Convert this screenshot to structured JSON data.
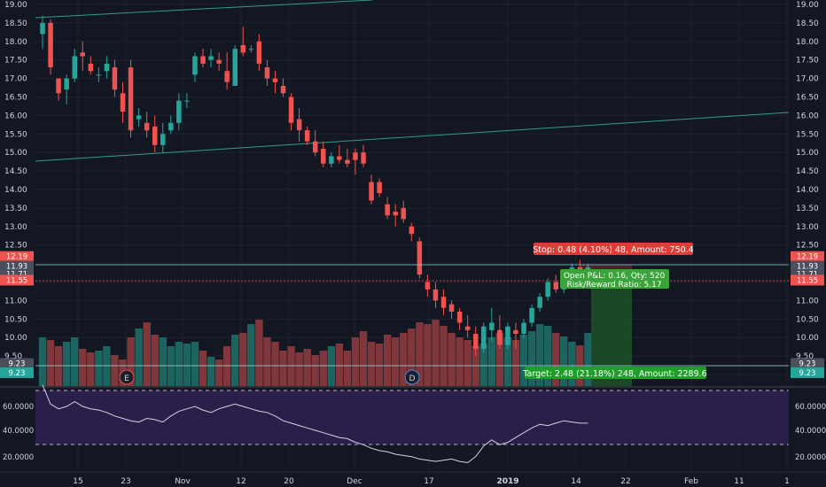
{
  "theme": {
    "background": "#131722",
    "grid": "#1e2230",
    "axis_text": "#d1d4dc",
    "up": "#26a69a",
    "down": "#ef5350",
    "vol_up": "#1f6b66",
    "vol_down": "#8c3b3e",
    "rsi_band": "#2a1f4a",
    "rsi_line": "#d1d4dc"
  },
  "price_axis": {
    "ticks": [
      "19.00",
      "18.50",
      "18.00",
      "17.50",
      "17.00",
      "16.50",
      "16.00",
      "15.50",
      "15.00",
      "14.50",
      "14.00",
      "13.50",
      "13.00",
      "12.50",
      "12.00",
      "11.50",
      "11.00",
      "10.50",
      "10.00",
      "9.50",
      "9.00"
    ]
  },
  "price_tags": [
    {
      "id": "stop",
      "value": 12.19,
      "label": "12.19",
      "color": "#ef5350"
    },
    {
      "id": "last",
      "value": 11.93,
      "label": "11.93",
      "color": "#4a4f5c"
    },
    {
      "id": "entry",
      "value": 11.71,
      "label": "11.71",
      "color": "#4a4f5c"
    },
    {
      "id": "open",
      "value": 11.55,
      "label": "11.55",
      "color": "#ef5350"
    },
    {
      "id": "target_line",
      "value": 9.3,
      "label": "9.23",
      "color": "#4a4f5c"
    },
    {
      "id": "target",
      "value": 9.05,
      "label": "9.23",
      "color": "#26a69a"
    }
  ],
  "rsi_axis": {
    "ticks": [
      "60.0000",
      "40.0000",
      "20.0000"
    ]
  },
  "time_axis": {
    "labels": [
      "15",
      "23",
      "Nov",
      "12",
      "20",
      "Dec",
      "17",
      "2019",
      "14",
      "22",
      "Feb",
      "11",
      "1"
    ]
  },
  "markers": [
    {
      "id": "earnings",
      "text": "E"
    },
    {
      "id": "dividend",
      "text": "D"
    }
  ],
  "position": {
    "stop_label": "Stop: 0.48 (4.10%) 48, Amount: 750.4",
    "pnl_label": "Open P&L: 0.16, Qty: 520",
    "ratio_label": "Risk/Reward Ratio: 5.17",
    "target_label": "Target: 2.48 (21.18%) 248, Amount: 2289.6"
  },
  "chart_data": {
    "type": "candlestick",
    "ylim": [
      9.0,
      19.0
    ],
    "candles": [
      {
        "o": 18.2,
        "h": 18.7,
        "l": 17.8,
        "c": 18.5
      },
      {
        "o": 18.5,
        "h": 18.6,
        "l": 17.1,
        "c": 17.3
      },
      {
        "o": 17.0,
        "h": 17.0,
        "l": 16.4,
        "c": 16.6
      },
      {
        "o": 16.7,
        "h": 17.1,
        "l": 16.3,
        "c": 17.0
      },
      {
        "o": 17.0,
        "h": 17.8,
        "l": 16.9,
        "c": 17.6
      },
      {
        "o": 17.7,
        "h": 18.0,
        "l": 17.2,
        "c": 17.6
      },
      {
        "o": 17.4,
        "h": 17.6,
        "l": 17.1,
        "c": 17.2
      },
      {
        "o": 17.1,
        "h": 17.3,
        "l": 16.9,
        "c": 17.1
      },
      {
        "o": 17.2,
        "h": 17.6,
        "l": 17.0,
        "c": 17.4
      },
      {
        "o": 17.3,
        "h": 17.5,
        "l": 16.5,
        "c": 16.7
      },
      {
        "o": 16.6,
        "h": 16.9,
        "l": 15.8,
        "c": 16.1
      },
      {
        "o": 17.3,
        "h": 17.5,
        "l": 15.4,
        "c": 15.6
      },
      {
        "o": 15.9,
        "h": 16.2,
        "l": 15.7,
        "c": 16.0
      },
      {
        "o": 15.8,
        "h": 16.1,
        "l": 15.4,
        "c": 15.6
      },
      {
        "o": 15.7,
        "h": 16.0,
        "l": 15.0,
        "c": 15.2
      },
      {
        "o": 15.2,
        "h": 15.8,
        "l": 15.0,
        "c": 15.5
      },
      {
        "o": 15.6,
        "h": 16.0,
        "l": 15.5,
        "c": 15.8
      },
      {
        "o": 15.8,
        "h": 16.6,
        "l": 15.6,
        "c": 16.4
      },
      {
        "o": 16.4,
        "h": 16.6,
        "l": 16.2,
        "c": 16.4
      },
      {
        "o": 17.1,
        "h": 17.7,
        "l": 16.9,
        "c": 17.6
      },
      {
        "o": 17.6,
        "h": 17.8,
        "l": 17.3,
        "c": 17.4
      },
      {
        "o": 17.5,
        "h": 17.8,
        "l": 17.3,
        "c": 17.6
      },
      {
        "o": 17.5,
        "h": 17.7,
        "l": 17.2,
        "c": 17.4
      },
      {
        "o": 17.2,
        "h": 17.7,
        "l": 16.7,
        "c": 16.9
      },
      {
        "o": 16.8,
        "h": 17.9,
        "l": 16.8,
        "c": 17.8
      },
      {
        "o": 17.9,
        "h": 18.4,
        "l": 17.6,
        "c": 17.7
      },
      {
        "o": 17.8,
        "h": 17.9,
        "l": 17.7,
        "c": 17.8
      },
      {
        "o": 18.0,
        "h": 18.2,
        "l": 17.2,
        "c": 17.4
      },
      {
        "o": 17.3,
        "h": 17.5,
        "l": 16.8,
        "c": 17.0
      },
      {
        "o": 17.0,
        "h": 17.2,
        "l": 16.6,
        "c": 16.9
      },
      {
        "o": 16.8,
        "h": 17.0,
        "l": 16.5,
        "c": 16.6
      },
      {
        "o": 16.5,
        "h": 16.6,
        "l": 15.6,
        "c": 15.8
      },
      {
        "o": 15.9,
        "h": 16.2,
        "l": 15.3,
        "c": 15.6
      },
      {
        "o": 15.6,
        "h": 15.7,
        "l": 15.2,
        "c": 15.3
      },
      {
        "o": 15.3,
        "h": 15.6,
        "l": 14.9,
        "c": 15.0
      },
      {
        "o": 15.1,
        "h": 15.3,
        "l": 14.6,
        "c": 14.7
      },
      {
        "o": 14.7,
        "h": 15.0,
        "l": 14.6,
        "c": 14.9
      },
      {
        "o": 14.9,
        "h": 15.2,
        "l": 14.7,
        "c": 14.8
      },
      {
        "o": 14.8,
        "h": 15.1,
        "l": 14.6,
        "c": 14.7
      },
      {
        "o": 15.0,
        "h": 15.1,
        "l": 14.4,
        "c": 14.8
      },
      {
        "o": 15.0,
        "h": 15.2,
        "l": 14.6,
        "c": 14.7
      },
      {
        "o": 14.2,
        "h": 14.4,
        "l": 13.6,
        "c": 13.7
      },
      {
        "o": 14.2,
        "h": 14.3,
        "l": 13.8,
        "c": 13.9
      },
      {
        "o": 13.6,
        "h": 13.8,
        "l": 13.2,
        "c": 13.3
      },
      {
        "o": 13.4,
        "h": 13.6,
        "l": 13.0,
        "c": 13.3
      },
      {
        "o": 13.5,
        "h": 13.7,
        "l": 13.1,
        "c": 13.2
      },
      {
        "o": 13.0,
        "h": 13.1,
        "l": 12.6,
        "c": 12.8
      },
      {
        "o": 12.6,
        "h": 12.7,
        "l": 11.6,
        "c": 11.7
      },
      {
        "o": 11.5,
        "h": 11.7,
        "l": 11.1,
        "c": 11.3
      },
      {
        "o": 11.3,
        "h": 11.5,
        "l": 10.8,
        "c": 11.0
      },
      {
        "o": 11.1,
        "h": 11.3,
        "l": 10.6,
        "c": 10.8
      },
      {
        "o": 10.9,
        "h": 11.0,
        "l": 10.5,
        "c": 10.7
      },
      {
        "o": 10.7,
        "h": 10.8,
        "l": 10.2,
        "c": 10.4
      },
      {
        "o": 10.3,
        "h": 10.6,
        "l": 10.0,
        "c": 10.2
      },
      {
        "o": 10.1,
        "h": 10.3,
        "l": 9.5,
        "c": 9.7
      },
      {
        "o": 9.7,
        "h": 10.4,
        "l": 9.6,
        "c": 10.3
      },
      {
        "o": 10.2,
        "h": 10.8,
        "l": 9.9,
        "c": 10.4
      },
      {
        "o": 10.2,
        "h": 10.6,
        "l": 9.7,
        "c": 9.8
      },
      {
        "o": 9.8,
        "h": 10.4,
        "l": 9.7,
        "c": 10.3
      },
      {
        "o": 10.2,
        "h": 10.4,
        "l": 9.7,
        "c": 10.1
      },
      {
        "o": 10.1,
        "h": 10.5,
        "l": 10.0,
        "c": 10.4
      },
      {
        "o": 10.4,
        "h": 10.9,
        "l": 10.3,
        "c": 10.8
      },
      {
        "o": 10.8,
        "h": 11.2,
        "l": 10.7,
        "c": 11.1
      },
      {
        "o": 11.1,
        "h": 11.6,
        "l": 11.0,
        "c": 11.5
      },
      {
        "o": 11.5,
        "h": 11.7,
        "l": 11.2,
        "c": 11.3
      },
      {
        "o": 11.3,
        "h": 11.8,
        "l": 11.2,
        "c": 11.7
      },
      {
        "o": 11.7,
        "h": 12.0,
        "l": 11.5,
        "c": 11.9
      },
      {
        "o": 11.9,
        "h": 12.1,
        "l": 11.7,
        "c": 11.8
      },
      {
        "o": 11.8,
        "h": 12.0,
        "l": 11.6,
        "c": 11.9
      }
    ],
    "volume": [
      0.55,
      0.52,
      0.45,
      0.5,
      0.55,
      0.42,
      0.38,
      0.4,
      0.45,
      0.35,
      0.3,
      0.55,
      0.65,
      0.72,
      0.58,
      0.55,
      0.45,
      0.5,
      0.48,
      0.5,
      0.4,
      0.33,
      0.3,
      0.45,
      0.58,
      0.6,
      0.7,
      0.75,
      0.55,
      0.5,
      0.4,
      0.45,
      0.38,
      0.42,
      0.35,
      0.4,
      0.45,
      0.48,
      0.4,
      0.55,
      0.62,
      0.5,
      0.48,
      0.58,
      0.55,
      0.6,
      0.65,
      0.72,
      0.7,
      0.75,
      0.68,
      0.6,
      0.55,
      0.52,
      0.45,
      0.48,
      0.55,
      0.6,
      0.55,
      0.52,
      0.58,
      0.62,
      0.7,
      0.68,
      0.6,
      0.56,
      0.5,
      0.46,
      0.6
    ],
    "rsi": [
      78,
      62,
      58,
      60,
      64,
      60,
      58,
      57,
      55,
      52,
      50,
      48,
      47,
      50,
      49,
      47,
      52,
      56,
      58,
      60,
      57,
      55,
      58,
      60,
      62,
      60,
      58,
      56,
      55,
      52,
      48,
      46,
      44,
      42,
      40,
      38,
      36,
      34,
      33,
      30,
      28,
      25,
      23,
      22,
      20,
      19,
      18,
      16,
      15,
      14,
      15,
      16,
      14,
      13,
      18,
      27,
      32,
      28,
      30,
      34,
      38,
      42,
      45,
      44,
      46,
      48,
      47,
      46,
      46
    ]
  }
}
